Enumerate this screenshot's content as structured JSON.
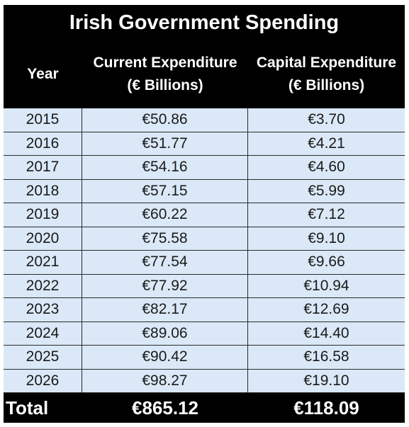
{
  "title": "Irish Government Spending",
  "headers": {
    "year": "Year",
    "current_line1": "Current Expenditure",
    "current_line2": "(€ Billions)",
    "capital_line1": "Capital Expenditure",
    "capital_line2": "(€ Billions)"
  },
  "rows": [
    {
      "year": "2015",
      "current": "€50.86",
      "capital": "€3.70"
    },
    {
      "year": "2016",
      "current": "€51.77",
      "capital": "€4.21"
    },
    {
      "year": "2017",
      "current": "€54.16",
      "capital": "€4.60"
    },
    {
      "year": "2018",
      "current": "€57.15",
      "capital": "€5.99"
    },
    {
      "year": "2019",
      "current": "€60.22",
      "capital": "€7.12"
    },
    {
      "year": "2020",
      "current": "€75.58",
      "capital": "€9.10"
    },
    {
      "year": "2021",
      "current": "€77.54",
      "capital": "€9.66"
    },
    {
      "year": "2022",
      "current": "€77.92",
      "capital": "€10.94"
    },
    {
      "year": "2023",
      "current": "€82.17",
      "capital": "€12.69"
    },
    {
      "year": "2024",
      "current": "€89.06",
      "capital": "€14.40"
    },
    {
      "year": "2025",
      "current": "€90.42",
      "capital": "€16.58"
    },
    {
      "year": "2026",
      "current": "€98.27",
      "capital": "€19.10"
    }
  ],
  "total": {
    "label": "Total",
    "current": "€865.12",
    "capital": "€118.09"
  },
  "colors": {
    "header_bg": "#000000",
    "row_bg": "#dae8f7",
    "header_text": "#ffffff"
  }
}
